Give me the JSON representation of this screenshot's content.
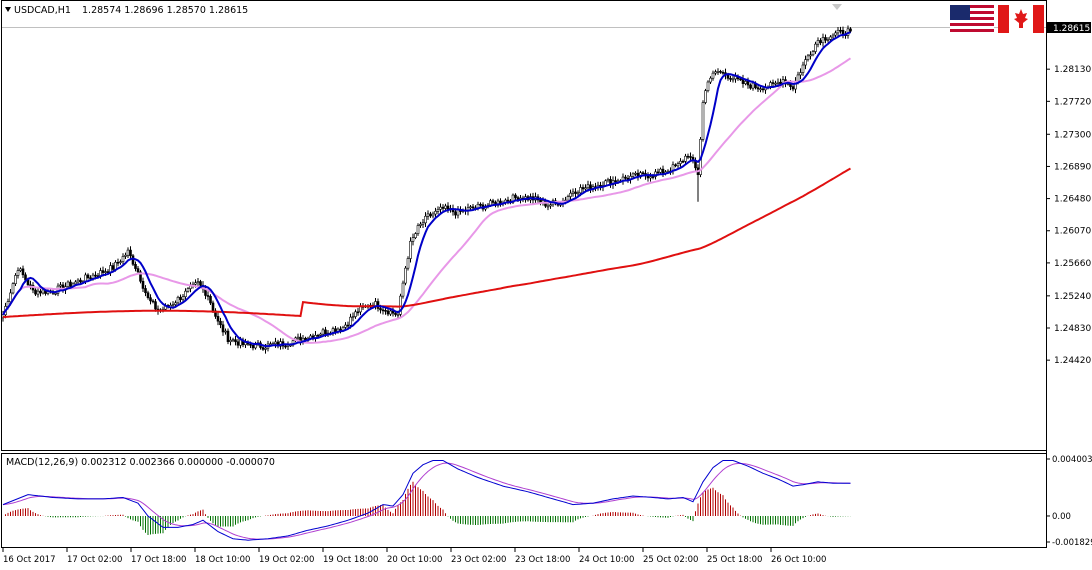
{
  "chart_data": [
    {
      "type": "candlestick",
      "header": {
        "symbol_tf": "USDCAD,H1",
        "ohlc": "1.28574 1.28696 1.28570 1.28615"
      },
      "current_price": "1.28615",
      "y_ticks": [
        "1.28130",
        "1.27720",
        "1.27300",
        "1.26890",
        "1.26480",
        "1.26070",
        "1.25660",
        "1.25240",
        "1.24830",
        "1.24420"
      ],
      "x_ticks": [
        "16 Oct 2017",
        "17 Oct 02:00",
        "17 Oct 18:00",
        "18 Oct 10:00",
        "19 Oct 02:00",
        "19 Oct 18:00",
        "20 Oct 10:00",
        "23 Oct 02:00",
        "23 Oct 18:00",
        "24 Oct 10:00",
        "25 Oct 02:00",
        "25 Oct 18:00",
        "26 Oct 10:00"
      ],
      "ylim": [
        1.2432,
        1.2891
      ],
      "grid": false,
      "colors": {
        "candle": "#000000",
        "fast_ma": "#0000c8",
        "mid_ma": "#e898e8",
        "slow_ma": "#e01010"
      },
      "flags": [
        "us-flag-icon",
        "canada-flag-icon"
      ],
      "keypoints": [
        [
          0,
          1.25
        ],
        [
          6,
          1.256
        ],
        [
          12,
          1.253
        ],
        [
          20,
          1.253
        ],
        [
          28,
          1.254
        ],
        [
          36,
          1.255
        ],
        [
          44,
          1.256
        ],
        [
          50,
          1.258
        ],
        [
          54,
          1.2555
        ],
        [
          58,
          1.252
        ],
        [
          62,
          1.2505
        ],
        [
          66,
          1.251
        ],
        [
          72,
          1.2525
        ],
        [
          78,
          1.254
        ],
        [
          82,
          1.2525
        ],
        [
          86,
          1.249
        ],
        [
          90,
          1.247
        ],
        [
          96,
          1.2462
        ],
        [
          104,
          1.246
        ],
        [
          112,
          1.2463
        ],
        [
          120,
          1.247
        ],
        [
          128,
          1.2478
        ],
        [
          136,
          1.2484
        ],
        [
          142,
          1.2505
        ],
        [
          148,
          1.2515
        ],
        [
          154,
          1.2505
        ],
        [
          158,
          1.25
        ],
        [
          161,
          1.256
        ],
        [
          163,
          1.259
        ],
        [
          166,
          1.261
        ],
        [
          170,
          1.2625
        ],
        [
          176,
          1.2635
        ],
        [
          182,
          1.263
        ],
        [
          188,
          1.2636
        ],
        [
          194,
          1.264
        ],
        [
          200,
          1.2645
        ],
        [
          206,
          1.265
        ],
        [
          212,
          1.2648
        ],
        [
          218,
          1.264
        ],
        [
          224,
          1.2645
        ],
        [
          228,
          1.2658
        ],
        [
          234,
          1.2662
        ],
        [
          240,
          1.2668
        ],
        [
          246,
          1.2672
        ],
        [
          252,
          1.2676
        ],
        [
          258,
          1.2678
        ],
        [
          264,
          1.2682
        ],
        [
          270,
          1.269
        ],
        [
          274,
          1.2705
        ],
        [
          278,
          1.268
        ],
        [
          280,
          1.277
        ],
        [
          282,
          1.28
        ],
        [
          286,
          1.281
        ],
        [
          290,
          1.2805
        ],
        [
          296,
          1.2795
        ],
        [
          302,
          1.279
        ],
        [
          308,
          1.2792
        ],
        [
          312,
          1.28
        ],
        [
          316,
          1.279
        ],
        [
          318,
          1.2805
        ],
        [
          322,
          1.283
        ],
        [
          326,
          1.285
        ],
        [
          332,
          1.2857
        ],
        [
          336,
          1.286
        ],
        [
          339,
          1.2862
        ]
      ]
    },
    {
      "type": "macd",
      "header": "MACD(12,26,9) 0.002312 0.002366 0.000000 -0.000070",
      "y_ticks": [
        "0.004003",
        "0.00",
        "-0.001829"
      ],
      "ylim": [
        -0.001829,
        0.004003
      ],
      "colors": {
        "macd": "#0000d0",
        "signal": "#b040d0",
        "hist_pos": "#b00000",
        "hist_neg": "#007000"
      },
      "macd_keypoints": [
        [
          0,
          0.0008
        ],
        [
          10,
          0.0015
        ],
        [
          20,
          0.0013
        ],
        [
          30,
          0.0012
        ],
        [
          40,
          0.0012
        ],
        [
          48,
          0.0013
        ],
        [
          54,
          0.0009
        ],
        [
          58,
          0.0
        ],
        [
          64,
          -0.0008
        ],
        [
          70,
          -0.0008
        ],
        [
          76,
          -0.0006
        ],
        [
          80,
          -0.0003
        ],
        [
          86,
          -0.0011
        ],
        [
          92,
          -0.0016
        ],
        [
          98,
          -0.0017
        ],
        [
          106,
          -0.0016
        ],
        [
          114,
          -0.0014
        ],
        [
          122,
          -0.001
        ],
        [
          130,
          -0.0007
        ],
        [
          138,
          -0.0003
        ],
        [
          146,
          0.0002
        ],
        [
          152,
          0.0008
        ],
        [
          156,
          0.0007
        ],
        [
          160,
          0.0015
        ],
        [
          164,
          0.003
        ],
        [
          168,
          0.0036
        ],
        [
          172,
          0.0039
        ],
        [
          176,
          0.0039
        ],
        [
          182,
          0.0033
        ],
        [
          190,
          0.0027
        ],
        [
          200,
          0.0021
        ],
        [
          210,
          0.0017
        ],
        [
          220,
          0.0012
        ],
        [
          228,
          0.0008
        ],
        [
          236,
          0.0009
        ],
        [
          244,
          0.0012
        ],
        [
          252,
          0.0014
        ],
        [
          260,
          0.0013
        ],
        [
          266,
          0.0012
        ],
        [
          272,
          0.0013
        ],
        [
          276,
          0.001
        ],
        [
          280,
          0.0024
        ],
        [
          284,
          0.0034
        ],
        [
          288,
          0.0039
        ],
        [
          292,
          0.0039
        ],
        [
          298,
          0.0035
        ],
        [
          304,
          0.003
        ],
        [
          310,
          0.0026
        ],
        [
          316,
          0.0021
        ],
        [
          320,
          0.0022
        ],
        [
          326,
          0.0024
        ],
        [
          332,
          0.0023
        ],
        [
          338,
          0.0023
        ]
      ]
    }
  ]
}
